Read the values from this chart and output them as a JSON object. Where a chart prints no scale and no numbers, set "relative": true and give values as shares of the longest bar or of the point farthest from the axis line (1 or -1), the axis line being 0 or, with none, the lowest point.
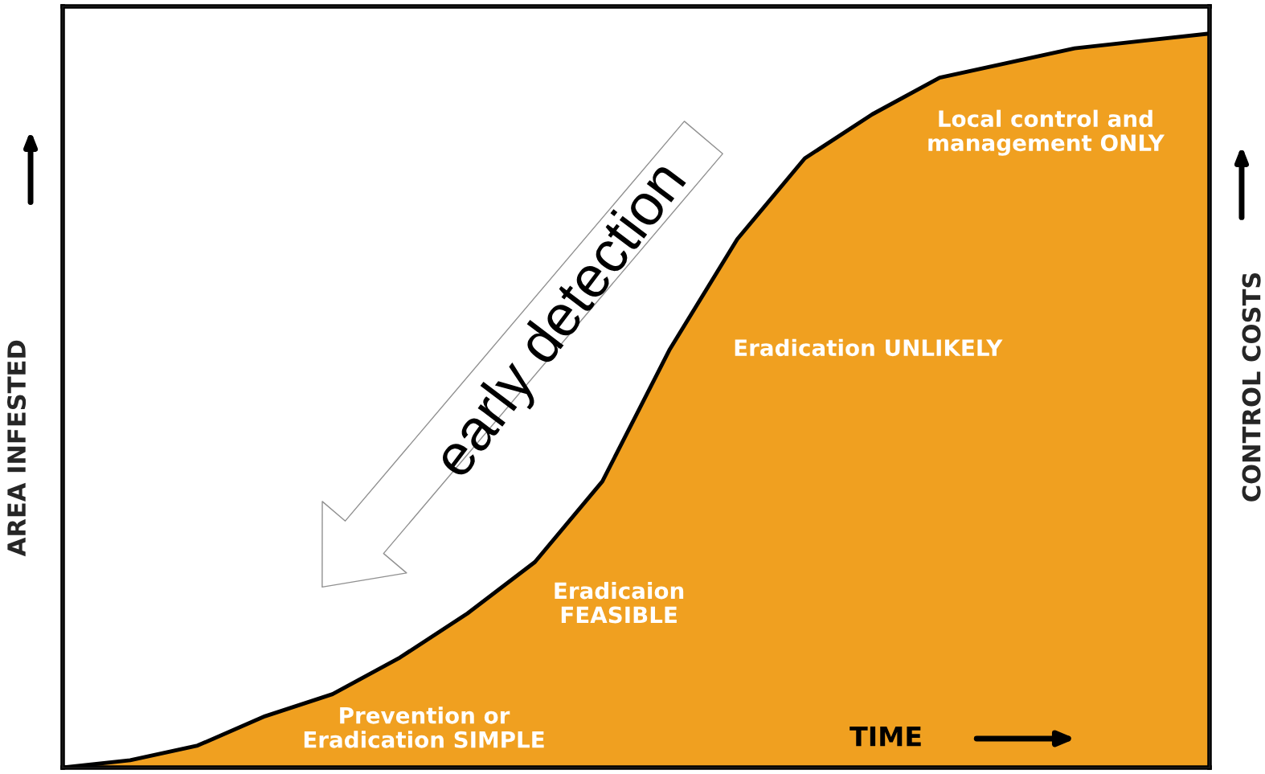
{
  "chart_data": {
    "type": "area",
    "relative": true,
    "xlabel": "TIME",
    "ylabel": "AREA INFESTED",
    "y2label": "CONTROL COSTS",
    "categories": [
      null,
      null,
      null,
      null,
      null,
      null,
      null,
      null,
      null,
      null,
      null,
      null,
      null,
      null,
      null,
      null,
      null,
      null
    ],
    "series": [
      {
        "color": "#f0a020",
        "values": [
          0,
          0.01,
          0.03,
          0.07,
          0.1,
          0.15,
          0.21,
          0.28,
          0.39,
          0.57,
          0.72,
          0.83,
          0.89,
          0.94,
          0.96,
          0.98,
          0.99,
          1
        ]
      }
    ],
    "annotations": [
      "early detection",
      "Prevention or\nEradication SIMPLE",
      "Eradicaion\nFEASIBLE",
      "Eradication UNLIKELY",
      "Local control and\nmanagement ONLY"
    ],
    "grid": false,
    "legend": false
  }
}
